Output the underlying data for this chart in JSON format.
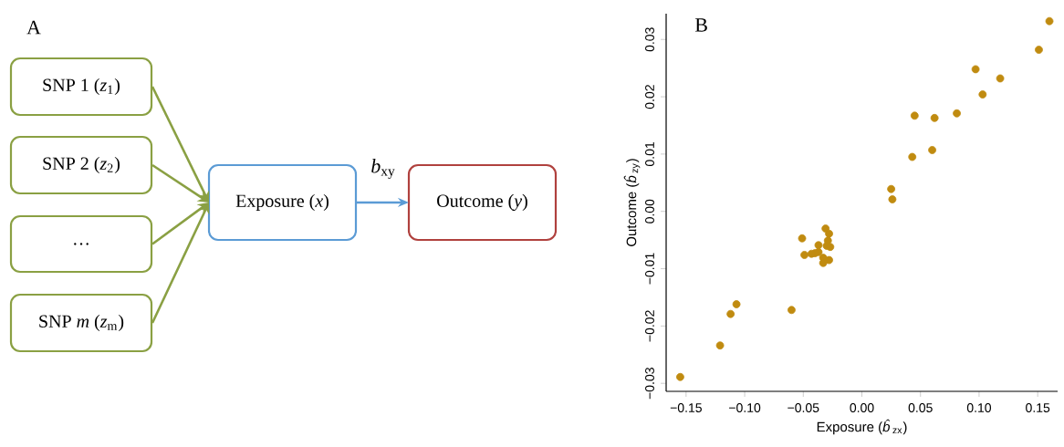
{
  "chart_data": [
    {
      "type": "other",
      "title": "A",
      "annotations": [
        "SNP 1 (*z*$_{1}$)",
        "SNP 2 (*z*$_{2}$)",
        "…",
        "SNP *m* (*z*$_{m}$)",
        "Exposure (*x*)",
        "Outcome (*y*)",
        "*b*$_{xy}$"
      ]
    },
    {
      "type": "scatter",
      "title": "B",
      "xlabel": "Exposure (*b̂*$_{zx}$)",
      "ylabel": "Outcome (*b̂*$_{zy}$)",
      "color": "#c08b10",
      "marker": "circle",
      "x": [
        0.16,
        0.151,
        0.097,
        0.118,
        0.103,
        0.045,
        0.062,
        0.081,
        0.06,
        0.043,
        0.025,
        0.026,
        -0.031,
        -0.028,
        -0.051,
        -0.029,
        -0.037,
        -0.03,
        -0.027,
        -0.037,
        -0.04,
        -0.043,
        -0.049,
        -0.033,
        -0.028,
        -0.033,
        -0.107,
        -0.112,
        -0.06,
        -0.121,
        -0.155
      ],
      "values": [
        0.0332,
        0.0282,
        0.0248,
        0.0232,
        0.0204,
        0.0167,
        0.0163,
        0.0171,
        0.0107,
        0.0095,
        0.0039,
        0.0021,
        -0.003,
        -0.0039,
        -0.0047,
        -0.0051,
        -0.0059,
        -0.006,
        -0.0062,
        -0.0071,
        -0.0073,
        -0.0074,
        -0.0076,
        -0.0081,
        -0.0085,
        -0.009,
        -0.0162,
        -0.0179,
        -0.0172,
        -0.0234,
        -0.0289
      ],
      "xlim": [
        -0.167,
        0.167
      ],
      "ylim": [
        -0.0314,
        0.0345
      ],
      "xticks": [
        {
          "value": -0.15,
          "label": "−0.15"
        },
        {
          "value": -0.1,
          "label": "−0.10"
        },
        {
          "value": -0.05,
          "label": "−0.05"
        },
        {
          "value": 0,
          "label": "0.00"
        },
        {
          "value": 0.05,
          "label": "0.05"
        },
        {
          "value": 0.1,
          "label": "0.10"
        },
        {
          "value": 0.15,
          "label": "0.15"
        }
      ],
      "yticks": [
        {
          "value": -0.03,
          "label": "−0.03"
        },
        {
          "value": -0.02,
          "label": "−0.02"
        },
        {
          "value": -0.01,
          "label": "−0.01"
        },
        {
          "value": 0,
          "label": "0.00"
        },
        {
          "value": 0.01,
          "label": "0.01"
        },
        {
          "value": 0.02,
          "label": "0.02"
        },
        {
          "value": 0.03,
          "label": "0.03"
        }
      ]
    }
  ]
}
